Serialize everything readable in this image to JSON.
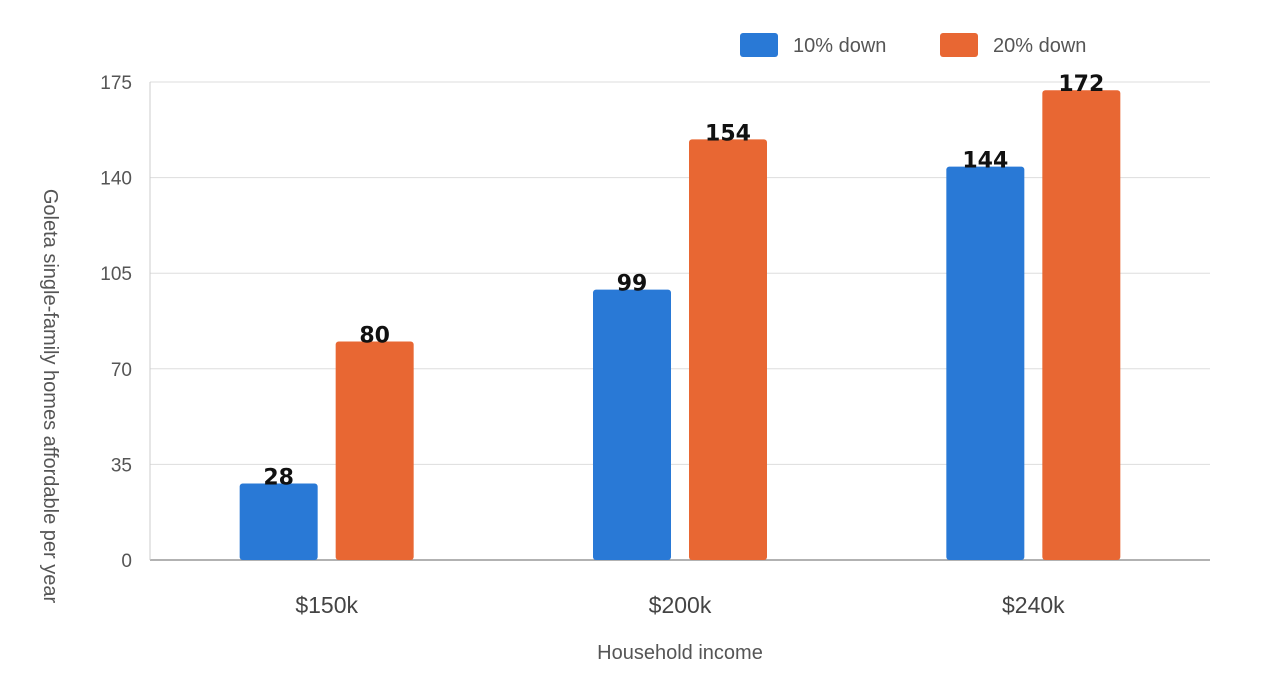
{
  "chart_data": {
    "type": "bar",
    "categories": [
      "$150k",
      "$200k",
      "$240k"
    ],
    "series": [
      {
        "name": "10% down",
        "values": [
          28,
          99,
          144
        ],
        "color": "#2979d6"
      },
      {
        "name": "20% down",
        "values": [
          80,
          154,
          172
        ],
        "color": "#e86733"
      }
    ],
    "xlabel": "Household income",
    "ylabel": "Goleta single-family homes affordable per year",
    "ylim": [
      0,
      175
    ],
    "yticks": [
      0,
      35,
      70,
      105,
      140,
      175
    ],
    "grid": true,
    "legend_position": "top-right"
  }
}
